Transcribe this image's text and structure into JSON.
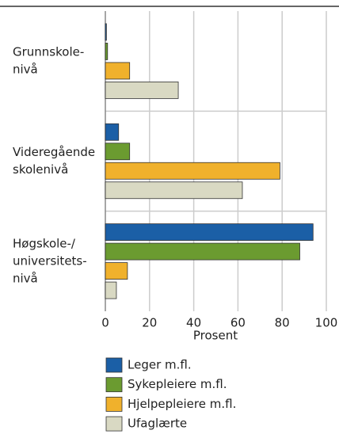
{
  "chart_data": {
    "type": "bar",
    "orientation": "horizontal",
    "categories": [
      [
        "Grunnskole-",
        "nivå"
      ],
      [
        "Videregående",
        "skolenivå"
      ],
      [
        "Høgskole-/",
        "universitets-",
        "nivå"
      ]
    ],
    "series": [
      {
        "name": "Leger m.fl.",
        "color": "#1b5fa6",
        "values": [
          0.5,
          6,
          94
        ]
      },
      {
        "name": "Sykepleiere m.fl.",
        "color": "#6b9b30",
        "values": [
          1,
          11,
          88
        ]
      },
      {
        "name": "Hjelpepleiere m.fl.",
        "color": "#f0b12c",
        "values": [
          11,
          79,
          10
        ]
      },
      {
        "name": "Ufaglærte",
        "color": "#d9d9c3",
        "values": [
          33,
          62,
          5
        ]
      }
    ],
    "xlabel": "Prosent",
    "xlim": [
      0,
      100
    ],
    "xticks": [
      0,
      20,
      40,
      60,
      80,
      100
    ],
    "grid": true
  }
}
